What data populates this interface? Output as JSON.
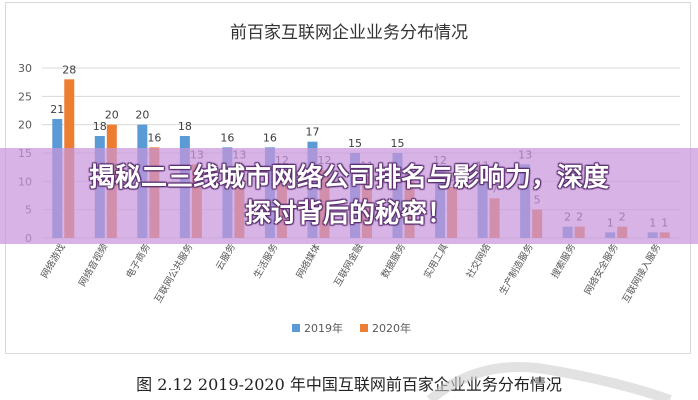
{
  "chart_data": {
    "type": "bar",
    "title": "前百家互联网企业业务分布情况",
    "categories": [
      "网络游戏",
      "网络音视频",
      "电子商务",
      "互联网公共服务",
      "云服务",
      "生活服务",
      "网络媒体",
      "互联网金融",
      "数据服务",
      "实用工具",
      "社交网络",
      "生产制造服务",
      "搜索服务",
      "网络安全服务",
      "互联网接入服务"
    ],
    "series": [
      {
        "name": "2019年",
        "color": "#5b9bd5",
        "values": [
          21,
          18,
          20,
          18,
          16,
          16,
          17,
          15,
          15,
          12,
          11,
          13,
          2,
          1,
          1
        ]
      },
      {
        "name": "2020年",
        "color": "#ed7d31",
        "values": [
          28,
          20,
          16,
          13,
          13,
          12,
          12,
          11,
          10,
          9,
          7,
          5,
          2,
          2,
          1
        ]
      }
    ],
    "ylim": [
      0,
      30
    ],
    "yticks": [
      0,
      5,
      10,
      15,
      20,
      25,
      30
    ],
    "grid": true,
    "legend_position": "bottom",
    "xlabel": "",
    "ylabel": ""
  },
  "caption": "图 2.12 2019-2020 年中国互联网前百家企业业务分布情况",
  "banner": {
    "line1": "揭秘二三线城市网络公司排名与影响力，深度",
    "line2": "探讨背后的秘密！"
  }
}
